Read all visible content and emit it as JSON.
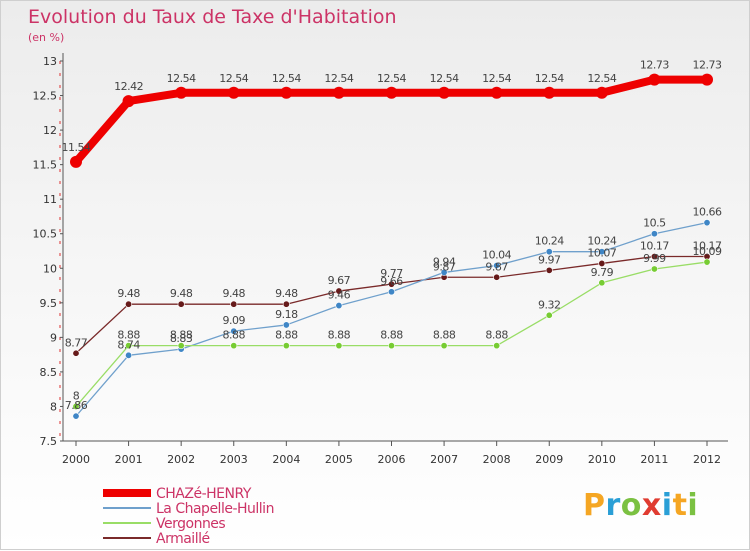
{
  "header": {
    "title": "Evolution du Taux de Taxe d'Habitation",
    "subtitle": "(en %)"
  },
  "logo": {
    "text": "Proxiti",
    "colors": [
      "#f5a623",
      "#2a9fd6",
      "#7bc142",
      "#e03c31",
      "#2a9fd6",
      "#f5a623",
      "#7bc142"
    ]
  },
  "chart_data": {
    "type": "line",
    "categories": [
      "2000",
      "2001",
      "2002",
      "2003",
      "2004",
      "2005",
      "2006",
      "2007",
      "2008",
      "2009",
      "2010",
      "2011",
      "2012"
    ],
    "ylim": [
      7.5,
      13
    ],
    "yticks": [
      "7.5",
      "8",
      "8.5",
      "9",
      "9.5",
      "10",
      "10.5",
      "11",
      "11.5",
      "12",
      "12.5",
      "13"
    ],
    "grid": false,
    "legend_position": "bottom-left",
    "series": [
      {
        "name": "CHAZé-HENRY",
        "color": "#ee0000",
        "width": 8,
        "marker": 6,
        "values": [
          11.54,
          12.42,
          12.54,
          12.54,
          12.54,
          12.54,
          12.54,
          12.54,
          12.54,
          12.54,
          12.54,
          12.73,
          12.73
        ],
        "labels": [
          "11.54",
          "12.42",
          "12.54",
          "12.54",
          "12.54",
          "12.54",
          "12.54",
          "12.54",
          "12.54",
          "12.54",
          "12.54",
          "12.73",
          "12.73"
        ]
      },
      {
        "name": "La Chapelle-Hullin",
        "color": "#6fa0cc",
        "marker_color": "#3f86c6",
        "width": 1.3,
        "marker": 3.2,
        "values": [
          7.86,
          8.74,
          8.83,
          9.09,
          9.18,
          9.46,
          9.66,
          9.94,
          10.04,
          10.24,
          10.24,
          10.5,
          10.66
        ],
        "labels": [
          "7.86",
          "8.74",
          "8.83",
          "9.09",
          "9.18",
          "9.46",
          "9.66",
          "9.94",
          "10.04",
          "10.24",
          "10.24",
          "10.5",
          "10.66"
        ]
      },
      {
        "name": "Vergonnes",
        "color": "#99dd66",
        "marker_color": "#77cc33",
        "width": 1.3,
        "marker": 3.2,
        "values": [
          8,
          8.88,
          8.88,
          8.88,
          8.88,
          8.88,
          8.88,
          8.88,
          8.88,
          9.32,
          9.79,
          9.99,
          10.09
        ],
        "labels": [
          "8",
          "8.88",
          "8.88",
          "8.88",
          "8.88",
          "8.88",
          "8.88",
          "8.88",
          "8.88",
          "9.32",
          "9.79",
          "9.99",
          "10.09"
        ]
      },
      {
        "name": "Armaillé",
        "color": "#7a2a2a",
        "marker_color": "#661a1a",
        "width": 1.3,
        "marker": 3.2,
        "values": [
          8.77,
          9.48,
          9.48,
          9.48,
          9.48,
          9.67,
          9.77,
          9.87,
          9.87,
          9.97,
          10.07,
          10.17,
          10.17
        ],
        "labels": [
          "8.77",
          "9.48",
          "9.48",
          "9.48",
          "9.48",
          "9.67",
          "9.77",
          "9.87",
          "9.87",
          "9.97",
          "10.07",
          "10.17",
          "10.17"
        ]
      }
    ]
  }
}
